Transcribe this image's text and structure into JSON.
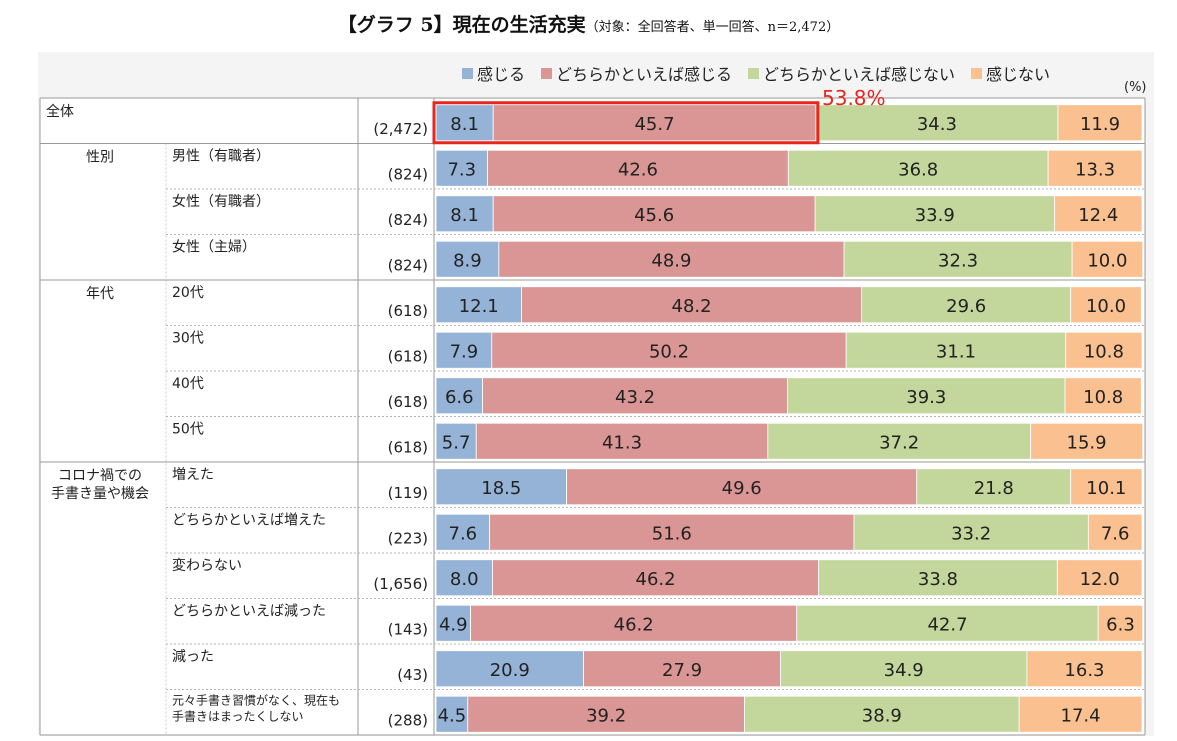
{
  "title": "【グラフ 5】現在の生活充実",
  "subtitle": "（対象：全回答者、単一回答、n＝2,472）",
  "unit_label": "(%)",
  "highlight": {
    "label": "53.8%",
    "row_index": 0
  },
  "colors": {
    "感じる": "#95b3d7",
    "どちらかといえば感じる": "#d99694",
    "どちらかといえば感じない": "#c3d69b",
    "感じない": "#fac090",
    "highlight_box": "#e8261f"
  },
  "chart_data": {
    "type": "bar",
    "orientation": "horizontal",
    "stacked": true,
    "percent": true,
    "title": "【グラフ 5】現在の生活充実",
    "legend_position": "top",
    "series": [
      {
        "name": "感じる",
        "values": [
          8.1,
          7.3,
          8.1,
          8.9,
          12.1,
          7.9,
          6.6,
          5.7,
          18.5,
          7.6,
          8.0,
          4.9,
          20.9,
          4.5
        ]
      },
      {
        "name": "どちらかといえば感じる",
        "values": [
          45.7,
          42.6,
          45.6,
          48.9,
          48.2,
          50.2,
          43.2,
          41.3,
          49.6,
          51.6,
          46.2,
          46.2,
          27.9,
          39.2
        ]
      },
      {
        "name": "どちらかといえば感じない",
        "values": [
          34.3,
          36.8,
          33.9,
          32.3,
          29.6,
          31.1,
          39.3,
          37.2,
          21.8,
          33.2,
          33.8,
          42.7,
          34.9,
          38.9
        ]
      },
      {
        "name": "感じない",
        "values": [
          11.9,
          13.3,
          12.4,
          10.0,
          10.0,
          10.8,
          10.8,
          15.9,
          10.1,
          7.6,
          12.0,
          6.3,
          16.3,
          17.4
        ]
      }
    ],
    "rows": [
      {
        "group": "全体",
        "label": "",
        "n": "(2,472)"
      },
      {
        "group": "性別",
        "label": "男性（有職者）",
        "n": "(824)"
      },
      {
        "group": "",
        "label": "女性（有職者）",
        "n": "(824)"
      },
      {
        "group": "",
        "label": "女性（主婦）",
        "n": "(824)"
      },
      {
        "group": "年代",
        "label": "20代",
        "n": "(618)"
      },
      {
        "group": "",
        "label": "30代",
        "n": "(618)"
      },
      {
        "group": "",
        "label": "40代",
        "n": "(618)"
      },
      {
        "group": "",
        "label": "50代",
        "n": "(618)"
      },
      {
        "group": "コロナ禍での\n手書き量や機会",
        "label": "増えた",
        "n": "(119)"
      },
      {
        "group": "",
        "label": "どちらかといえば増えた",
        "n": "(223)"
      },
      {
        "group": "",
        "label": "変わらない",
        "n": "(1,656)"
      },
      {
        "group": "",
        "label": "どちらかといえば減った",
        "n": "(143)"
      },
      {
        "group": "",
        "label": "減った",
        "n": "(43)"
      },
      {
        "group": "",
        "label": "元々手書き習慣がなく、現在も\n手書きはまったくしない",
        "n": "(288)"
      }
    ]
  }
}
